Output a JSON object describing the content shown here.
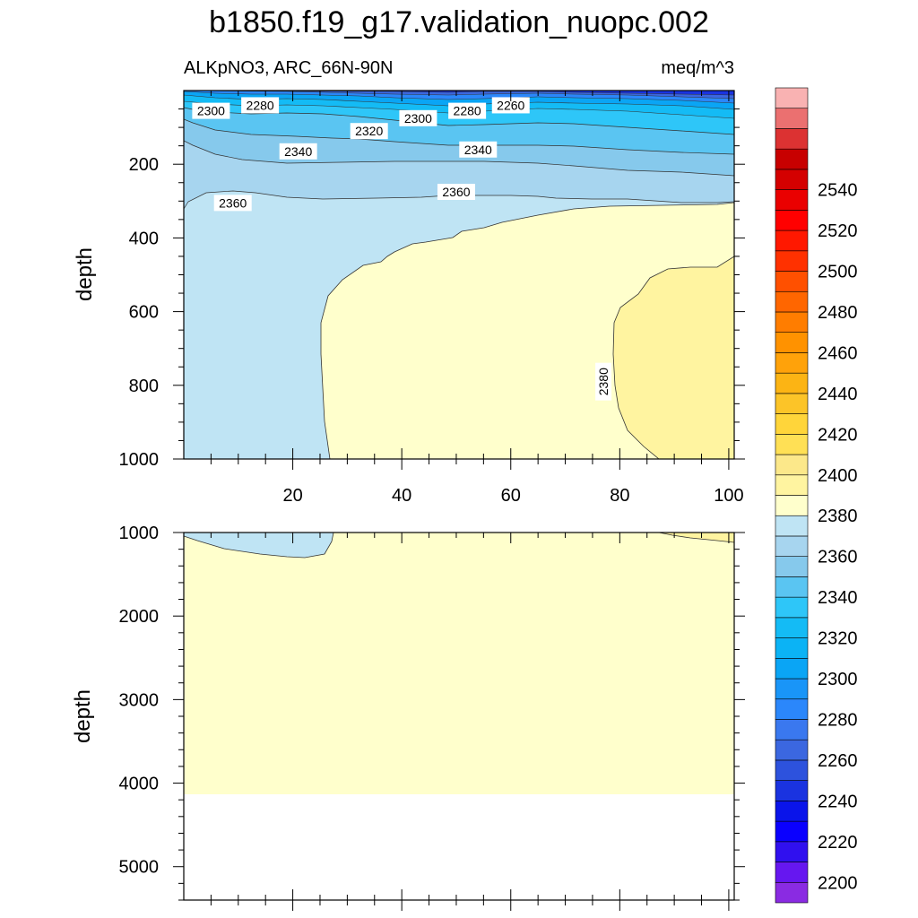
{
  "chart_data": [
    {
      "type": "heatmap",
      "title": "b1850.f19_g17.validation_nuopc.002",
      "subtitle_left": "ALKpNO3, ARC_66N-90N",
      "subtitle_right": "meq/m^3",
      "xlabel": "",
      "ylabel": "depth",
      "xlim": [
        0,
        101
      ],
      "ylim": [
        1000,
        0
      ],
      "x_ticks": [
        20,
        40,
        60,
        80,
        100
      ],
      "y_ticks": [
        200,
        400,
        600,
        800,
        1000
      ],
      "contour_labels": [
        {
          "text": "2300",
          "x": 5,
          "y": 55
        },
        {
          "text": "2280",
          "x": 14,
          "y": 40
        },
        {
          "text": "2260",
          "x": 60,
          "y": 40
        },
        {
          "text": "2280",
          "x": 52,
          "y": 55
        },
        {
          "text": "2300",
          "x": 43,
          "y": 75
        },
        {
          "text": "2320",
          "x": 34,
          "y": 110
        },
        {
          "text": "2340",
          "x": 21,
          "y": 165
        },
        {
          "text": "2340",
          "x": 54,
          "y": 160
        },
        {
          "text": "2360",
          "x": 9,
          "y": 305
        },
        {
          "text": "2360",
          "x": 50,
          "y": 275
        },
        {
          "text": "2380",
          "x": 77,
          "y": 790,
          "rotate": -90
        }
      ]
    },
    {
      "type": "heatmap",
      "xlabel": "",
      "ylabel": "depth",
      "xlim": [
        0,
        101
      ],
      "ylim": [
        5400,
        1000
      ],
      "y_ticks": [
        1000,
        2000,
        3000,
        4000,
        5000
      ]
    }
  ],
  "colorbar": {
    "labels": [
      "2200",
      "2220",
      "2240",
      "2260",
      "2280",
      "2300",
      "2320",
      "2340",
      "2360",
      "2380",
      "2400",
      "2420",
      "2440",
      "2460",
      "2480",
      "2500",
      "2520",
      "2540"
    ],
    "colors": [
      "#8a2be2",
      "#6617f0",
      "#3010ef",
      "#0a00ff",
      "#0a14ea",
      "#1a33e0",
      "#2d52dd",
      "#3b67e0",
      "#3a78ef",
      "#2b87fb",
      "#1995f8",
      "#0aa5f5",
      "#0bb3f5",
      "#14bbf5",
      "#2ec6f8",
      "#5ac5f2",
      "#86c9ec",
      "#a7d5ef",
      "#bfe4f4",
      "#ffffcc",
      "#fff4a0",
      "#fce88a",
      "#ffe055",
      "#ffd53a",
      "#fcc428",
      "#fcb414",
      "#ffa20a",
      "#ff9200",
      "#ff7d00",
      "#ff6600",
      "#ff5000",
      "#ff3100",
      "#ff1800",
      "#ff0000",
      "#ea0000",
      "#d40000",
      "#c80000",
      "#dc3232",
      "#eb7070",
      "#f9b2b2"
    ]
  }
}
